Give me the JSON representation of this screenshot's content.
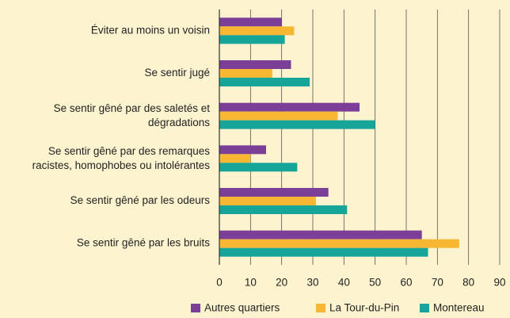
{
  "chart_data": {
    "type": "barh",
    "categories": [
      "Éviter au moins un voisin",
      "Se sentir jugé",
      "Se sentir gêné par des saletés et\ndégradations",
      "Se sentir gêné par des remarques\nracistes, homophobes ou intolérantes",
      "Se sentir gêné par les odeurs",
      "Se sentir gêné par les bruits"
    ],
    "series": [
      {
        "name": "Autres quartiers",
        "color": "#7b3f98",
        "values": [
          20,
          23,
          45,
          15,
          35,
          65
        ]
      },
      {
        "name": "La Tour-du-Pin",
        "color": "#f8b733",
        "values": [
          24,
          17,
          38,
          10,
          31,
          77
        ]
      },
      {
        "name": "Montereau",
        "color": "#17a59a",
        "values": [
          21,
          29,
          50,
          25,
          41,
          67
        ]
      }
    ],
    "xlim": [
      0,
      90
    ],
    "xticks": [
      0,
      10,
      20,
      30,
      40,
      50,
      60,
      70,
      80,
      90
    ],
    "grid": true
  }
}
